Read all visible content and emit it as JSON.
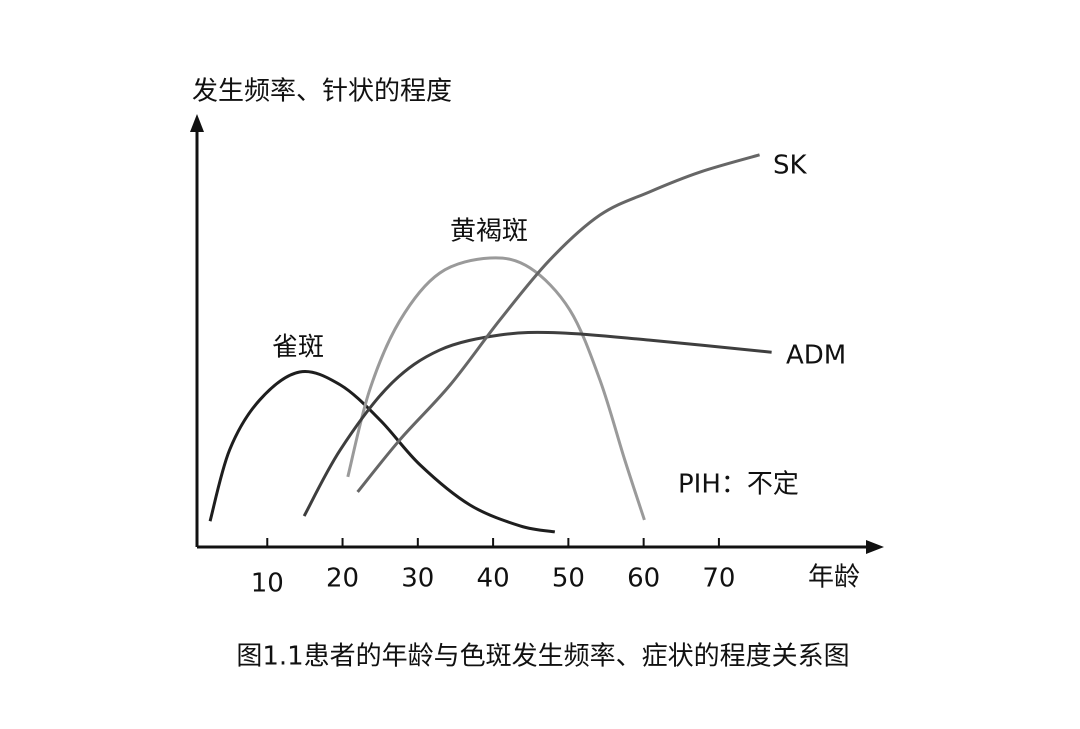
{
  "chart_data": {
    "type": "line",
    "y_label": "发生频率、针状的程度",
    "x_label": "年龄",
    "title": "图1.1患者的年龄与色斑发生频率、症状的程度关系图",
    "annotations": [
      "PIH：不定"
    ],
    "xlim": [
      0,
      91
    ],
    "xticks": [
      10,
      20,
      30,
      40,
      50,
      60,
      70
    ],
    "ylim": [
      0,
      100
    ],
    "series": [
      {
        "name": "雀斑",
        "color": "#1e1e1e",
        "x": [
          2.4,
          5.0,
          9.0,
          14.3,
          19.7,
          25.0,
          30.3,
          36.9,
          43.6,
          48.2
        ],
        "values": [
          6,
          22.6,
          34.2,
          40.7,
          37.7,
          29.5,
          19.1,
          9.8,
          4.9,
          3.5
        ]
      },
      {
        "name": "黄褐斑",
        "color": "#9a9a9a",
        "x": [
          20.7,
          23.6,
          27.6,
          32.9,
          39.6,
          44.9,
          50.2,
          54.2,
          57.5,
          60.1
        ],
        "values": [
          16.3,
          36.5,
          52.6,
          63.7,
          67.2,
          64.9,
          55.1,
          38.8,
          20.2,
          6.3
        ]
      },
      {
        "name": "ADM",
        "color": "#3e3e3e",
        "x": [
          14.9,
          19.7,
          26.3,
          32.9,
          40.9,
          48.9,
          60.8,
          77.0
        ],
        "values": [
          7.2,
          22.6,
          37.7,
          45.8,
          49.3,
          49.8,
          48.1,
          45.3
        ]
      },
      {
        "name": "SK",
        "color": "#666666",
        "x": [
          22.0,
          27.6,
          34.3,
          40.9,
          47.5,
          54.2,
          60.8,
          67.5,
          75.4
        ],
        "values": [
          12.8,
          24.9,
          37.7,
          52.8,
          66.7,
          77.2,
          82.6,
          87.2,
          91.2
        ]
      }
    ]
  }
}
